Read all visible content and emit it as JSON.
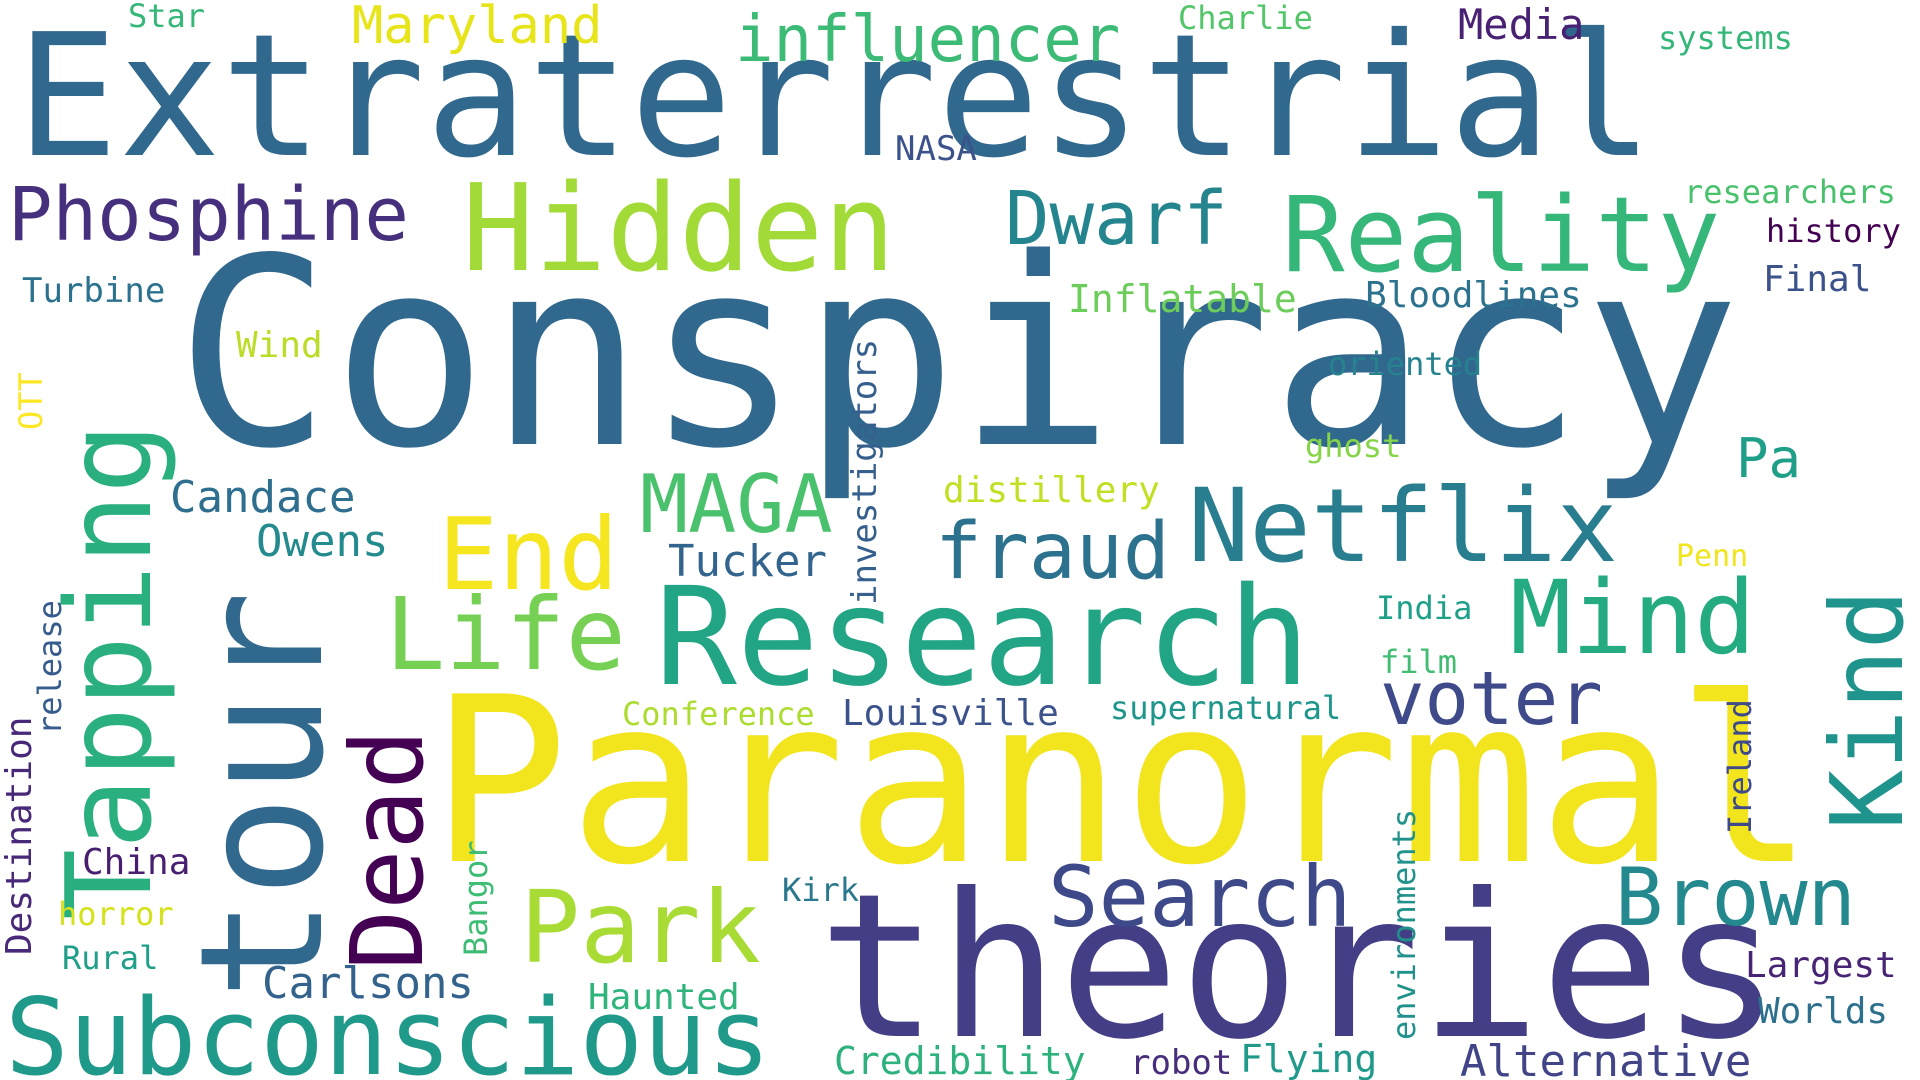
{
  "colors": {
    "background": "#ffffff",
    "palette": [
      "#440154",
      "#46327e",
      "#365c8d",
      "#277f8e",
      "#1fa187",
      "#4ac16d",
      "#a0da39",
      "#fde725"
    ]
  },
  "words": [
    {
      "text": "Extraterrestrial",
      "color": "#31688e",
      "orientation": "horizontal"
    },
    {
      "text": "Conspiracy",
      "color": "#31688e",
      "orientation": "horizontal"
    },
    {
      "text": "Paranormal",
      "color": "#f2e51d",
      "orientation": "horizontal"
    },
    {
      "text": "theories",
      "color": "#433e85",
      "orientation": "horizontal"
    },
    {
      "text": "Research",
      "color": "#21a585",
      "orientation": "horizontal"
    },
    {
      "text": "tour",
      "color": "#31688e",
      "orientation": "vertical"
    },
    {
      "text": "Tapping",
      "color": "#2ab07f",
      "orientation": "vertical"
    },
    {
      "text": "Hidden",
      "color": "#a2da37",
      "orientation": "horizontal"
    },
    {
      "text": "Reality",
      "color": "#35b779",
      "orientation": "horizontal"
    },
    {
      "text": "Subconscious",
      "color": "#1f998a",
      "orientation": "horizontal"
    },
    {
      "text": "Netflix",
      "color": "#287d8e",
      "orientation": "horizontal"
    },
    {
      "text": "Mind",
      "color": "#25ab82",
      "orientation": "horizontal"
    },
    {
      "text": "Kind",
      "color": "#1f948c",
      "orientation": "vertical"
    },
    {
      "text": "Dead",
      "color": "#440154",
      "orientation": "vertical"
    },
    {
      "text": "Life",
      "color": "#75d054",
      "orientation": "horizontal"
    },
    {
      "text": "End",
      "color": "#f6e620",
      "orientation": "horizontal"
    },
    {
      "text": "Park",
      "color": "#a8db34",
      "orientation": "horizontal"
    },
    {
      "text": "Search",
      "color": "#3e4989",
      "orientation": "horizontal"
    },
    {
      "text": "Brown",
      "color": "#23898e",
      "orientation": "horizontal"
    },
    {
      "text": "voter",
      "color": "#3e4a89",
      "orientation": "horizontal"
    },
    {
      "text": "MAGA",
      "color": "#4ac16d",
      "orientation": "horizontal"
    },
    {
      "text": "fraud",
      "color": "#2c728e",
      "orientation": "horizontal"
    },
    {
      "text": "Dwarf",
      "color": "#25858e",
      "orientation": "horizontal"
    },
    {
      "text": "Phosphine",
      "color": "#46307e",
      "orientation": "horizontal"
    },
    {
      "text": "influencer",
      "color": "#3bbb75",
      "orientation": "horizontal"
    },
    {
      "text": "Maryland",
      "color": "#e7e419",
      "orientation": "horizontal"
    },
    {
      "text": "Media",
      "color": "#482173",
      "orientation": "horizontal"
    },
    {
      "text": "Star",
      "color": "#35b779",
      "orientation": "horizontal"
    },
    {
      "text": "Charlie",
      "color": "#52c569",
      "orientation": "horizontal"
    },
    {
      "text": "systems",
      "color": "#35b779",
      "orientation": "horizontal"
    },
    {
      "text": "NASA",
      "color": "#3b528b",
      "orientation": "horizontal"
    },
    {
      "text": "researchers",
      "color": "#4ac16d",
      "orientation": "horizontal"
    },
    {
      "text": "history",
      "color": "#440154",
      "orientation": "horizontal"
    },
    {
      "text": "Final",
      "color": "#3b528b",
      "orientation": "horizontal"
    },
    {
      "text": "Turbine",
      "color": "#2c728e",
      "orientation": "horizontal"
    },
    {
      "text": "Wind",
      "color": "#bade28",
      "orientation": "horizontal"
    },
    {
      "text": "OTT",
      "color": "#fde725",
      "orientation": "vertical"
    },
    {
      "text": "Inflatable",
      "color": "#6ccd5a",
      "orientation": "horizontal"
    },
    {
      "text": "Bloodlines",
      "color": "#2c728e",
      "orientation": "horizontal"
    },
    {
      "text": "oriented",
      "color": "#26828e",
      "orientation": "horizontal"
    },
    {
      "text": "ghost",
      "color": "#86d549",
      "orientation": "horizontal"
    },
    {
      "text": "Pa",
      "color": "#1f9f88",
      "orientation": "horizontal"
    },
    {
      "text": "distillery",
      "color": "#c2df23",
      "orientation": "horizontal"
    },
    {
      "text": "investigators",
      "color": "#355f8d",
      "orientation": "vertical"
    },
    {
      "text": "Candace",
      "color": "#2e6e8e",
      "orientation": "horizontal"
    },
    {
      "text": "Owens",
      "color": "#238a8d",
      "orientation": "horizontal"
    },
    {
      "text": "Tucker",
      "color": "#32648e",
      "orientation": "horizontal"
    },
    {
      "text": "Penn",
      "color": "#f1e51d",
      "orientation": "horizontal"
    },
    {
      "text": "India",
      "color": "#1fa088",
      "orientation": "horizontal"
    },
    {
      "text": "film",
      "color": "#40bd72",
      "orientation": "horizontal"
    },
    {
      "text": "release",
      "color": "#365c8d",
      "orientation": "vertical"
    },
    {
      "text": "Conference",
      "color": "#addc30",
      "orientation": "horizontal"
    },
    {
      "text": "Louisville",
      "color": "#3b528b",
      "orientation": "horizontal"
    },
    {
      "text": "supernatural",
      "color": "#1f968b",
      "orientation": "horizontal"
    },
    {
      "text": "Ireland",
      "color": "#3e4989",
      "orientation": "vertical"
    },
    {
      "text": "Destination",
      "color": "#482979",
      "orientation": "vertical"
    },
    {
      "text": "China",
      "color": "#481f70",
      "orientation": "horizontal"
    },
    {
      "text": "horror",
      "color": "#d5e21a",
      "orientation": "horizontal"
    },
    {
      "text": "Rural",
      "color": "#1f9e89",
      "orientation": "horizontal"
    },
    {
      "text": "Bangor",
      "color": "#3dbc74",
      "orientation": "vertical"
    },
    {
      "text": "Kirk",
      "color": "#2a788e",
      "orientation": "horizontal"
    },
    {
      "text": "Carlsons",
      "color": "#33638d",
      "orientation": "horizontal"
    },
    {
      "text": "Haunted",
      "color": "#2fb47c",
      "orientation": "horizontal"
    },
    {
      "text": "environments",
      "color": "#21918c",
      "orientation": "vertical"
    },
    {
      "text": "Largest",
      "color": "#482475",
      "orientation": "horizontal"
    },
    {
      "text": "Worlds",
      "color": "#2d708e",
      "orientation": "horizontal"
    },
    {
      "text": "Credibility",
      "color": "#2db27d",
      "orientation": "horizontal"
    },
    {
      "text": "robot",
      "color": "#472d7b",
      "orientation": "horizontal"
    },
    {
      "text": "Flying",
      "color": "#1f9a8a",
      "orientation": "horizontal"
    },
    {
      "text": "Alternative",
      "color": "#414487",
      "orientation": "horizontal"
    }
  ]
}
